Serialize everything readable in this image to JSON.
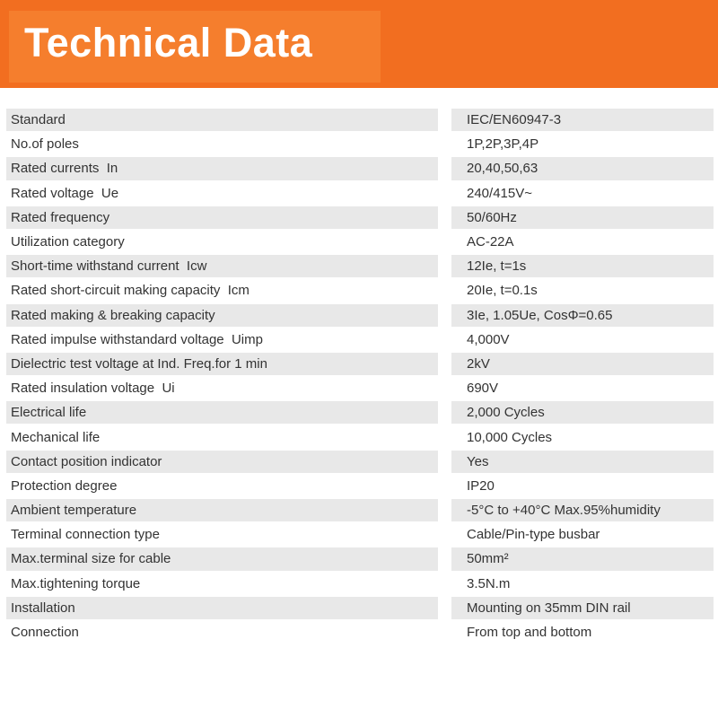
{
  "header": {
    "title": "Technical Data",
    "bg_color": "#F26E20",
    "panel_color": "#F57E2D",
    "title_color": "#FFFFFF"
  },
  "table": {
    "stripe_color": "#E8E8E8",
    "text_color": "#333333",
    "rows": [
      {
        "label": "Standard",
        "value": "IEC/EN60947-3"
      },
      {
        "label": "No.of poles",
        "value": "1P,2P,3P,4P"
      },
      {
        "label": "Rated currents  In",
        "value": "20,40,50,63"
      },
      {
        "label": "Rated voltage  Ue",
        "value": "240/415V~"
      },
      {
        "label": "Rated frequency",
        "value": "50/60Hz"
      },
      {
        "label": "Utilization category",
        "value": "AC-22A"
      },
      {
        "label": "Short-time withstand current  Icw",
        "value": "12Ie, t=1s"
      },
      {
        "label": "Rated short-circuit making capacity  Icm",
        "value": "20Ie, t=0.1s"
      },
      {
        "label": "Rated making & breaking capacity",
        "value": "3Ie, 1.05Ue, CosΦ=0.65"
      },
      {
        "label": "Rated impulse withstandard voltage  Uimp",
        "value": "4,000V"
      },
      {
        "label": "Dielectric test voltage at Ind. Freq.for 1 min",
        "value": "2kV"
      },
      {
        "label": "Rated insulation voltage  Ui",
        "value": "690V"
      },
      {
        "label": "Electrical life",
        "value": "2,000 Cycles"
      },
      {
        "label": "Mechanical life",
        "value": "10,000 Cycles"
      },
      {
        "label": "Contact position indicator",
        "value": "Yes"
      },
      {
        "label": "Protection degree",
        "value": "IP20"
      },
      {
        "label": "Ambient temperature",
        "value": "-5°C to +40°C Max.95%humidity"
      },
      {
        "label": "Terminal connection type",
        "value": "Cable/Pin-type busbar"
      },
      {
        "label": "Max.terminal size for cable",
        "value": "50mm²"
      },
      {
        "label": "Max.tightening torque",
        "value": "3.5N.m"
      },
      {
        "label": "Installation",
        "value": "Mounting on 35mm DIN rail"
      },
      {
        "label": "Connection",
        "value": "From top and bottom"
      }
    ]
  }
}
